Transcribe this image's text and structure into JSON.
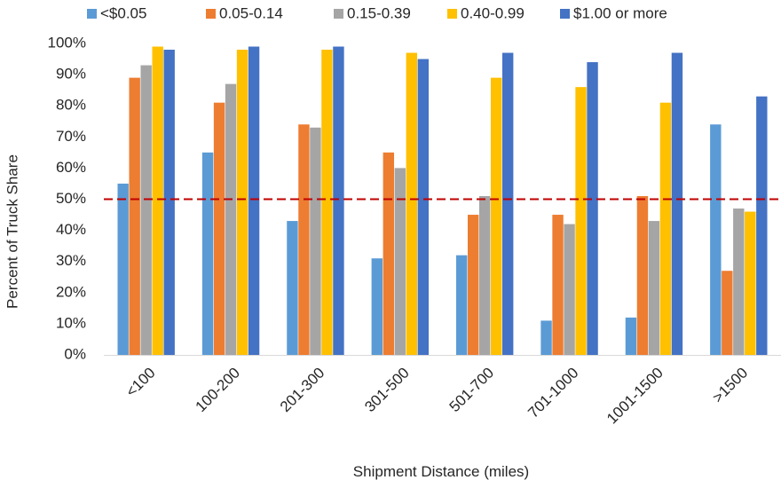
{
  "chart_data": {
    "type": "bar",
    "title": "",
    "xlabel": "Shipment Distance (miles)",
    "ylabel": "Percent of Truck Share",
    "categories": [
      "<100",
      "100-200",
      "201-300",
      "301-500",
      "501-700",
      "701-1000",
      "1001-1500",
      ">1500"
    ],
    "series": [
      {
        "name": "<$0.05",
        "color": "#5B9BD5",
        "values": [
          55,
          65,
          43,
          31,
          32,
          11,
          12,
          74
        ]
      },
      {
        "name": "0.05-0.14",
        "color": "#ED7D31",
        "values": [
          89,
          81,
          74,
          65,
          45,
          45,
          51,
          27
        ]
      },
      {
        "name": "0.15-0.39",
        "color": "#A5A5A5",
        "values": [
          93,
          87,
          73,
          60,
          51,
          42,
          43,
          47
        ]
      },
      {
        "name": "0.40-0.99",
        "color": "#FFC000",
        "values": [
          99,
          98,
          98,
          97,
          89,
          86,
          81,
          46
        ]
      },
      {
        "name": "$1.00 or more",
        "color": "#4472C4",
        "values": [
          98,
          99,
          99,
          95,
          97,
          94,
          97,
          83
        ]
      }
    ],
    "ylim": [
      0,
      100
    ],
    "yticks": [
      "0%",
      "10%",
      "20%",
      "30%",
      "40%",
      "50%",
      "60%",
      "70%",
      "80%",
      "90%",
      "100%"
    ],
    "reference_line": {
      "value": 50,
      "color": "#C00000",
      "style": "dashed"
    },
    "grid": false,
    "legend_position": "top"
  }
}
